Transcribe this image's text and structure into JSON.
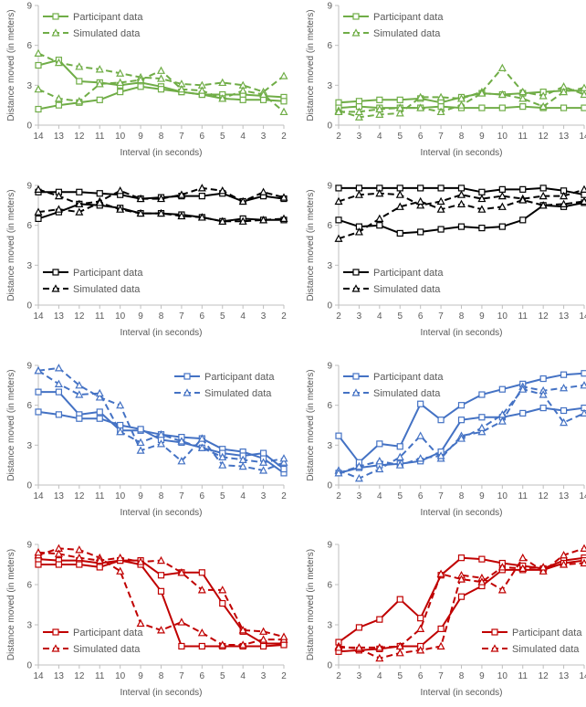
{
  "chart_data": [
    {
      "type": "line",
      "color": "#70AD47",
      "ylabel": "Distance moved (in meters)",
      "xlabel": "Interval (in seconds)",
      "x": [
        14,
        13,
        12,
        11,
        10,
        9,
        8,
        7,
        6,
        5,
        4,
        3,
        2
      ],
      "x_reversed": true,
      "xlim": [
        2,
        14
      ],
      "ylim": [
        0,
        9
      ],
      "yticks": [
        0,
        3,
        6,
        9
      ],
      "legend": [
        "Participant data",
        "Simulated data"
      ],
      "legend_position": "top-left",
      "series": [
        {
          "name": "Participant data",
          "style": "solid",
          "marker": "square",
          "values": [
            4.5,
            4.9,
            3.3,
            3.2,
            3.0,
            3.2,
            2.9,
            2.5,
            2.3,
            2.3,
            2.3,
            2.2,
            2.1
          ]
        },
        {
          "name": "Participant data",
          "style": "solid",
          "marker": "square",
          "values": [
            1.2,
            1.5,
            1.7,
            1.9,
            2.5,
            2.9,
            2.7,
            2.5,
            2.3,
            2.0,
            1.9,
            1.9,
            1.8
          ]
        },
        {
          "name": "Simulated data",
          "style": "dashed",
          "marker": "triangle",
          "values": [
            5.4,
            4.7,
            4.4,
            4.2,
            3.9,
            3.6,
            3.5,
            3.1,
            3.0,
            3.2,
            3.0,
            2.5,
            3.7
          ]
        },
        {
          "name": "Simulated data",
          "style": "dashed",
          "marker": "triangle",
          "values": [
            2.7,
            2.0,
            1.8,
            3.1,
            3.2,
            3.4,
            4.1,
            2.7,
            2.6,
            2.0,
            2.6,
            2.3,
            1.0
          ]
        }
      ]
    },
    {
      "type": "line",
      "color": "#70AD47",
      "ylabel": "Distance moved (in meters)",
      "xlabel": "Interval (in seconds)",
      "x": [
        2,
        3,
        4,
        5,
        6,
        7,
        8,
        9,
        10,
        11,
        12,
        13,
        14
      ],
      "x_reversed": false,
      "xlim": [
        2,
        14
      ],
      "ylim": [
        0,
        9
      ],
      "yticks": [
        0,
        3,
        6,
        9
      ],
      "legend": [
        "Participant data",
        "Simulated data"
      ],
      "legend_position": "top-left",
      "series": [
        {
          "name": "Participant data",
          "style": "solid",
          "marker": "square",
          "values": [
            1.7,
            1.8,
            1.9,
            1.9,
            2.0,
            1.7,
            2.1,
            2.4,
            2.3,
            2.4,
            2.5,
            2.6,
            2.6
          ]
        },
        {
          "name": "Participant data",
          "style": "solid",
          "marker": "square",
          "values": [
            1.3,
            1.4,
            1.3,
            1.3,
            1.3,
            1.4,
            1.3,
            1.3,
            1.3,
            1.4,
            1.3,
            1.3,
            1.3
          ]
        },
        {
          "name": "Simulated data",
          "style": "dashed",
          "marker": "triangle",
          "values": [
            1.1,
            0.6,
            0.8,
            0.9,
            2.1,
            2.1,
            2.0,
            2.5,
            4.3,
            2.5,
            2.2,
            2.9,
            2.3
          ]
        },
        {
          "name": "Simulated data",
          "style": "dashed",
          "marker": "triangle",
          "values": [
            1.0,
            1.0,
            1.2,
            1.3,
            1.3,
            1.0,
            1.5,
            2.4,
            2.3,
            2.0,
            1.4,
            2.5,
            2.8
          ]
        }
      ]
    },
    {
      "type": "line",
      "color": "#000000",
      "ylabel": "Distance moved (in meters)",
      "xlabel": "Interval (in seconds)",
      "x": [
        14,
        13,
        12,
        11,
        10,
        9,
        8,
        7,
        6,
        5,
        4,
        3,
        2
      ],
      "x_reversed": true,
      "xlim": [
        2,
        14
      ],
      "ylim": [
        0,
        9
      ],
      "yticks": [
        0,
        3,
        6,
        9
      ],
      "legend": [
        "Participant data",
        "Simulated data"
      ],
      "legend_position": "bottom-left",
      "series": [
        {
          "name": "Participant data",
          "style": "solid",
          "marker": "square",
          "values": [
            8.5,
            8.5,
            8.5,
            8.4,
            8.3,
            8.0,
            8.1,
            8.2,
            8.2,
            8.4,
            7.8,
            8.2,
            8.0
          ]
        },
        {
          "name": "Participant data",
          "style": "solid",
          "marker": "square",
          "values": [
            6.5,
            7.0,
            7.6,
            7.5,
            7.3,
            6.9,
            6.9,
            6.8,
            6.6,
            6.3,
            6.5,
            6.4,
            6.4
          ]
        },
        {
          "name": "Simulated data",
          "style": "dashed",
          "marker": "triangle",
          "values": [
            8.7,
            8.2,
            7.6,
            7.8,
            8.6,
            8.0,
            8.0,
            8.3,
            8.8,
            8.6,
            7.8,
            8.5,
            8.1
          ]
        },
        {
          "name": "Simulated data",
          "style": "dashed",
          "marker": "triangle",
          "values": [
            7.0,
            7.2,
            7.0,
            7.7,
            7.2,
            6.9,
            6.9,
            6.7,
            6.6,
            6.3,
            6.3,
            6.4,
            6.5
          ]
        }
      ]
    },
    {
      "type": "line",
      "color": "#000000",
      "ylabel": "Distance moved (in meters)",
      "xlabel": "Interval (in seconds)",
      "x": [
        2,
        3,
        4,
        5,
        6,
        7,
        8,
        9,
        10,
        11,
        12,
        13,
        14
      ],
      "x_reversed": false,
      "xlim": [
        2,
        14
      ],
      "ylim": [
        0,
        9
      ],
      "yticks": [
        0,
        3,
        6,
        9
      ],
      "legend": [
        "Participant data",
        "Simulated data"
      ],
      "legend_position": "bottom-left",
      "series": [
        {
          "name": "Participant data",
          "style": "solid",
          "marker": "square",
          "values": [
            8.8,
            8.8,
            8.8,
            8.8,
            8.8,
            8.8,
            8.8,
            8.5,
            8.7,
            8.7,
            8.8,
            8.6,
            8.3
          ]
        },
        {
          "name": "Participant data",
          "style": "solid",
          "marker": "square",
          "values": [
            6.4,
            5.9,
            6.0,
            5.4,
            5.5,
            5.7,
            5.9,
            5.8,
            5.9,
            6.4,
            7.5,
            7.4,
            7.7
          ]
        },
        {
          "name": "Simulated data",
          "style": "dashed",
          "marker": "triangle",
          "values": [
            7.8,
            8.3,
            8.4,
            8.3,
            7.5,
            7.8,
            8.3,
            8.0,
            8.2,
            8.0,
            8.2,
            8.2,
            8.7
          ]
        },
        {
          "name": "Simulated data",
          "style": "dashed",
          "marker": "triangle",
          "values": [
            5.0,
            5.5,
            6.5,
            7.4,
            7.8,
            7.2,
            7.6,
            7.2,
            7.4,
            7.9,
            7.5,
            7.6,
            7.8
          ]
        }
      ]
    },
    {
      "type": "line",
      "color": "#4472C4",
      "ylabel": "Distance moved (in meters)",
      "xlabel": "Interval (in seconds)",
      "x": [
        14,
        13,
        12,
        11,
        10,
        9,
        8,
        7,
        6,
        5,
        4,
        3,
        2
      ],
      "x_reversed": true,
      "xlim": [
        2,
        14
      ],
      "ylim": [
        0,
        9
      ],
      "yticks": [
        0,
        3,
        6,
        9
      ],
      "legend": [
        "Participant data",
        "Simulated data"
      ],
      "legend_position": "top-right",
      "series": [
        {
          "name": "Participant data",
          "style": "solid",
          "marker": "square",
          "values": [
            7.0,
            7.0,
            5.3,
            5.5,
            4.1,
            4.1,
            3.8,
            3.6,
            3.5,
            2.7,
            2.5,
            2.0,
            0.9
          ]
        },
        {
          "name": "Participant data",
          "style": "solid",
          "marker": "square",
          "values": [
            5.5,
            5.3,
            5.0,
            5.0,
            4.5,
            4.2,
            3.4,
            3.2,
            2.8,
            2.4,
            2.2,
            2.4,
            1.2
          ]
        },
        {
          "name": "Simulated data",
          "style": "dashed",
          "marker": "triangle",
          "values": [
            8.6,
            8.8,
            7.5,
            6.6,
            6.0,
            2.6,
            3.1,
            1.8,
            3.5,
            1.5,
            1.4,
            1.1,
            1.7
          ]
        },
        {
          "name": "Simulated data",
          "style": "dashed",
          "marker": "triangle",
          "values": [
            8.6,
            7.6,
            6.8,
            6.9,
            4.0,
            3.2,
            3.8,
            3.3,
            2.8,
            2.1,
            1.9,
            1.7,
            2.0
          ]
        }
      ]
    },
    {
      "type": "line",
      "color": "#4472C4",
      "ylabel": "Distance moved (in meters)",
      "xlabel": "Interval (in seconds)",
      "x": [
        2,
        3,
        4,
        5,
        6,
        7,
        8,
        9,
        10,
        11,
        12,
        13,
        14
      ],
      "x_reversed": false,
      "xlim": [
        2,
        14
      ],
      "ylim": [
        0,
        9
      ],
      "yticks": [
        0,
        3,
        6,
        9
      ],
      "legend": [
        "Participant data",
        "Simulated data"
      ],
      "legend_position": "top-left",
      "series": [
        {
          "name": "Participant data",
          "style": "solid",
          "marker": "square",
          "values": [
            3.7,
            1.7,
            3.1,
            2.9,
            6.1,
            4.9,
            6.0,
            6.8,
            7.2,
            7.6,
            8.0,
            8.3,
            8.4
          ]
        },
        {
          "name": "Participant data",
          "style": "solid",
          "marker": "square",
          "values": [
            0.9,
            1.3,
            1.5,
            1.6,
            1.8,
            2.5,
            4.9,
            5.1,
            5.1,
            5.4,
            5.8,
            5.6,
            5.8
          ]
        },
        {
          "name": "Simulated data",
          "style": "dashed",
          "marker": "triangle",
          "values": [
            1.1,
            0.5,
            1.2,
            2.1,
            3.7,
            2.0,
            3.7,
            4.0,
            4.8,
            7.4,
            7.1,
            7.3,
            7.5
          ]
        },
        {
          "name": "Simulated data",
          "style": "dashed",
          "marker": "triangle",
          "values": [
            0.9,
            1.4,
            1.8,
            1.5,
            2.0,
            2.2,
            3.5,
            4.3,
            5.3,
            7.2,
            6.8,
            4.7,
            5.4
          ]
        }
      ]
    },
    {
      "type": "line",
      "color": "#C00000",
      "ylabel": "Distance moved (in meters)",
      "xlabel": "Interval (in seconds)",
      "x": [
        14,
        13,
        12,
        11,
        10,
        9,
        8,
        7,
        6,
        5,
        4,
        3,
        2
      ],
      "x_reversed": true,
      "xlim": [
        2,
        14
      ],
      "ylim": [
        0,
        9
      ],
      "yticks": [
        0,
        3,
        6,
        9
      ],
      "legend": [
        "Participant data",
        "Simulated data"
      ],
      "legend_position": "bottom-left",
      "series": [
        {
          "name": "Participant data",
          "style": "solid",
          "marker": "square",
          "values": [
            7.9,
            7.8,
            7.8,
            7.6,
            7.8,
            7.8,
            6.7,
            6.9,
            6.9,
            4.6,
            2.5,
            1.6,
            1.6
          ]
        },
        {
          "name": "Participant data",
          "style": "solid",
          "marker": "square",
          "values": [
            7.5,
            7.5,
            7.5,
            7.3,
            7.8,
            7.5,
            5.5,
            1.4,
            1.4,
            1.4,
            1.4,
            1.4,
            1.5
          ]
        },
        {
          "name": "Simulated data",
          "style": "dashed",
          "marker": "triangle",
          "values": [
            8.2,
            8.7,
            8.6,
            8.0,
            7.0,
            3.1,
            2.6,
            3.2,
            2.4,
            1.5,
            1.5,
            1.9,
            1.9
          ]
        },
        {
          "name": "Simulated data",
          "style": "dashed",
          "marker": "triangle",
          "values": [
            8.4,
            8.3,
            8.0,
            7.8,
            8.0,
            7.7,
            7.8,
            6.9,
            5.6,
            5.6,
            2.6,
            2.5,
            2.1
          ]
        }
      ]
    },
    {
      "type": "line",
      "color": "#C00000",
      "ylabel": "Distance moved (in meters)",
      "xlabel": "Interval (in seconds)",
      "x": [
        2,
        3,
        4,
        5,
        6,
        7,
        8,
        9,
        10,
        11,
        12,
        13,
        14
      ],
      "x_reversed": false,
      "xlim": [
        2,
        14
      ],
      "ylim": [
        0,
        9
      ],
      "yticks": [
        0,
        3,
        6,
        9
      ],
      "legend": [
        "Participant data",
        "Simulated data"
      ],
      "legend_position": "bottom-right",
      "series": [
        {
          "name": "Participant data",
          "style": "solid",
          "marker": "square",
          "values": [
            1.7,
            2.8,
            3.4,
            4.9,
            3.5,
            6.7,
            8.0,
            7.9,
            7.6,
            7.4,
            7.2,
            7.8,
            8.0
          ]
        },
        {
          "name": "Participant data",
          "style": "solid",
          "marker": "square",
          "values": [
            1.0,
            1.1,
            1.2,
            1.4,
            1.4,
            2.7,
            5.1,
            5.9,
            7.1,
            7.1,
            7.1,
            7.6,
            7.8
          ]
        },
        {
          "name": "Simulated data",
          "style": "dashed",
          "marker": "triangle",
          "values": [
            1.4,
            1.2,
            0.5,
            0.9,
            1.1,
            1.4,
            6.7,
            6.5,
            5.6,
            8.0,
            7.0,
            8.2,
            8.7
          ]
        },
        {
          "name": "Simulated data",
          "style": "dashed",
          "marker": "triangle",
          "values": [
            1.3,
            1.3,
            1.3,
            1.4,
            2.7,
            6.8,
            6.4,
            6.2,
            7.3,
            7.2,
            7.3,
            7.5,
            7.6
          ]
        }
      ]
    }
  ]
}
